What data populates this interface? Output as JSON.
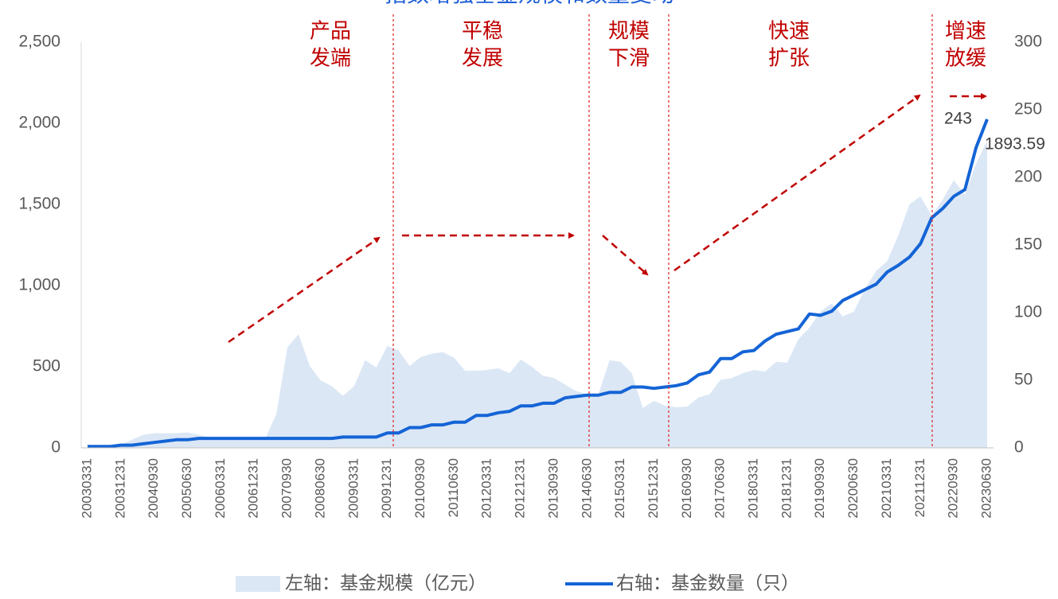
{
  "chart_data": {
    "type": "combo",
    "title": "指数增强基金规模和数量变动",
    "annotations": [
      [
        "产品",
        "发端"
      ],
      [
        "平稳",
        "发展"
      ],
      [
        "规模",
        "下滑"
      ],
      [
        "快速",
        "扩张"
      ],
      [
        "增速",
        "放缓"
      ]
    ],
    "categories": [
      "20030331",
      null,
      null,
      "20031231",
      null,
      null,
      "20040930",
      null,
      null,
      "20050630",
      null,
      null,
      "20060331",
      null,
      null,
      "20061231",
      null,
      null,
      "20070930",
      null,
      null,
      "20080630",
      null,
      null,
      "20090331",
      null,
      null,
      "20091231",
      null,
      null,
      "20100930",
      null,
      null,
      "20110630",
      null,
      null,
      "20120331",
      null,
      null,
      "20121231",
      null,
      null,
      "20130930",
      null,
      null,
      "20140630",
      null,
      null,
      "20150331",
      null,
      null,
      "20151231",
      null,
      null,
      "20160930",
      null,
      null,
      "20170630",
      null,
      null,
      "20180331",
      null,
      null,
      "20181231",
      null,
      null,
      "20190930",
      null,
      null,
      "20200630",
      null,
      null,
      "20210331",
      null,
      null,
      "20211231",
      null,
      null,
      "20220930",
      null,
      null,
      "20230630"
    ],
    "series": [
      {
        "name": "左轴：基金规模（亿元）",
        "type": "area",
        "axis": "y",
        "color": "#dbe7f5",
        "values": [
          0,
          5,
          10,
          20,
          50,
          80,
          90,
          90,
          90,
          95,
          80,
          65,
          60,
          60,
          55,
          50,
          55,
          210,
          620,
          700,
          505,
          415,
          380,
          320,
          380,
          540,
          495,
          630,
          600,
          505,
          560,
          580,
          590,
          555,
          475,
          475,
          480,
          490,
          460,
          545,
          500,
          445,
          430,
          390,
          350,
          330,
          330,
          540,
          530,
          460,
          245,
          290,
          260,
          250,
          255,
          310,
          330,
          420,
          430,
          460,
          480,
          470,
          530,
          525,
          670,
          740,
          840,
          890,
          810,
          840,
          980,
          1090,
          1150,
          1310,
          1500,
          1550,
          1430,
          1530,
          1650,
          1560,
          1750,
          1893.59
        ]
      },
      {
        "name": "右轴：基金数量（只）",
        "type": "line",
        "axis": "y2",
        "color": "#1464d6",
        "values": [
          1,
          1,
          1,
          2,
          2,
          3,
          4,
          5,
          6,
          6,
          7,
          7,
          7,
          7,
          7,
          7,
          7,
          7,
          7,
          7,
          7,
          7,
          7,
          8,
          8,
          8,
          8,
          11,
          11,
          15,
          15,
          17,
          17,
          19,
          19,
          24,
          24,
          26,
          27,
          31,
          31,
          33,
          33,
          37,
          38,
          39,
          39,
          41,
          41,
          45,
          45,
          44,
          45,
          46,
          48,
          54,
          56,
          66,
          66,
          71,
          72,
          79,
          84,
          86,
          88,
          99,
          98,
          101,
          109,
          113,
          117,
          121,
          130,
          135,
          141,
          151,
          170,
          177,
          186,
          191,
          222,
          243
        ]
      }
    ],
    "ylim": [
      0,
      2500
    ],
    "yticks": [
      0,
      500,
      {
        "value": 1000,
        "label": "1,000"
      },
      {
        "value": 1500,
        "label": "1,500"
      },
      {
        "value": 2000,
        "label": "2,000"
      },
      {
        "value": 2500,
        "label": "2,500"
      }
    ],
    "y2lim": [
      0,
      300
    ],
    "y2ticks": [
      0,
      50,
      100,
      150,
      200,
      250,
      300
    ]
  }
}
